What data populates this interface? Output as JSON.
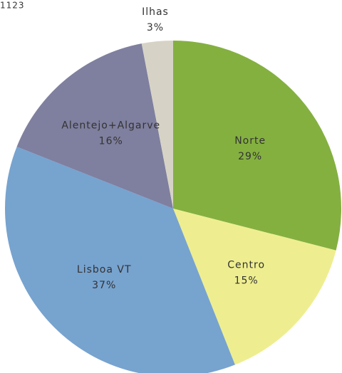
{
  "chart_data": {
    "type": "pie",
    "corner_label": "1123",
    "categories": [
      "Norte",
      "Centro",
      "Lisboa VT",
      "Alentejo+Algarve",
      "Ilhas"
    ],
    "values": [
      29,
      15,
      37,
      16,
      3
    ],
    "value_labels": [
      "29%",
      "15%",
      "37%",
      "16%",
      "3%"
    ],
    "colors": [
      "#84b040",
      "#eeee90",
      "#77a3cf",
      "#7f7f9f",
      "#d6d3c6"
    ]
  }
}
